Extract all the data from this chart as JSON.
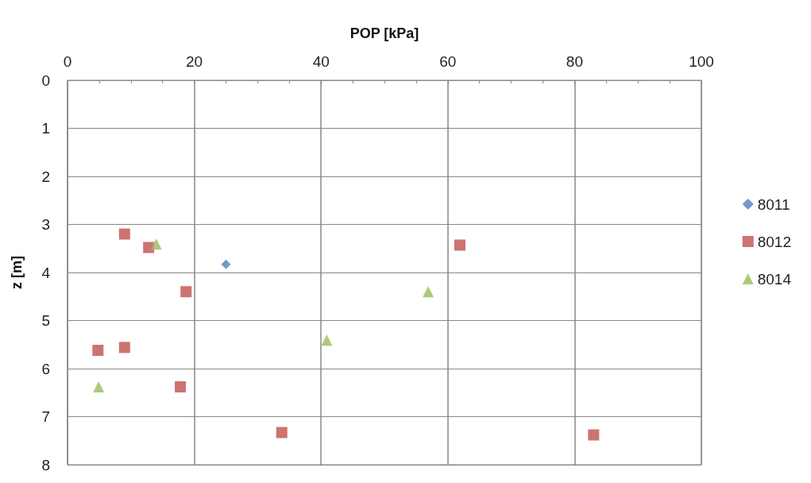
{
  "chart_data": {
    "type": "scatter",
    "xlabel": "POP [kPa]",
    "ylabel": "z [m]",
    "xlim": [
      0,
      100
    ],
    "xticks": [
      0,
      20,
      40,
      60,
      80,
      100
    ],
    "ylim": [
      8,
      0
    ],
    "yticks": [
      0,
      1,
      2,
      3,
      4,
      5,
      6,
      7,
      8
    ],
    "grid": true,
    "legend": "right",
    "series": [
      {
        "name": "8011",
        "color": "#4f81bd",
        "marker": "diamond",
        "x": [
          25
        ],
        "values": [
          3.83
        ]
      },
      {
        "name": "8012",
        "color": "#c0504d",
        "marker": "square",
        "x": [
          9,
          12.8,
          18.7,
          4.8,
          9,
          17.8,
          33.8,
          61.9,
          83
        ],
        "values": [
          3.2,
          3.48,
          4.4,
          5.62,
          5.56,
          6.38,
          7.33,
          3.43,
          7.38
        ]
      },
      {
        "name": "8014",
        "color": "#9bbb59",
        "marker": "triangle",
        "x": [
          14,
          56.9,
          40.9,
          4.9
        ],
        "values": [
          3.41,
          4.4,
          5.41,
          6.38
        ]
      }
    ]
  }
}
